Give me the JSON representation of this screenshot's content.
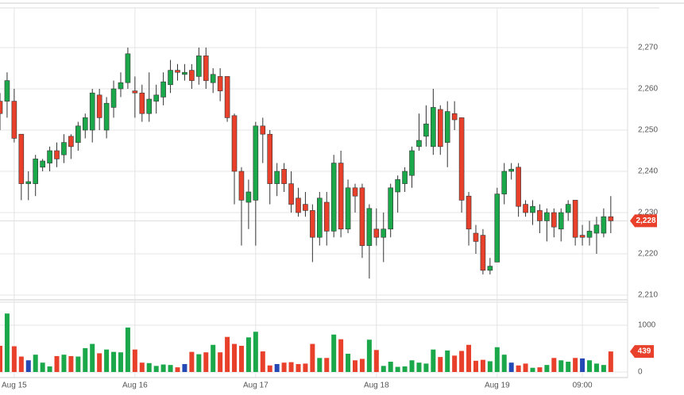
{
  "chart_data": {
    "type": "candlestick",
    "categories": [
      null,
      null,
      "Aug 15",
      null,
      null,
      null,
      null,
      null,
      null,
      null,
      null,
      null,
      null,
      null,
      null,
      null,
      null,
      null,
      null,
      "Aug 16",
      null,
      null,
      null,
      null,
      null,
      null,
      null,
      null,
      null,
      null,
      null,
      null,
      null,
      null,
      null,
      null,
      "Aug 17",
      null,
      null,
      null,
      null,
      null,
      null,
      null,
      null,
      null,
      null,
      null,
      null,
      null,
      null,
      null,
      null,
      "Aug 18",
      null,
      null,
      null,
      null,
      null,
      null,
      null,
      null,
      null,
      null,
      null,
      null,
      null,
      null,
      null,
      null,
      "Aug 19",
      null,
      null,
      null,
      null,
      null,
      null,
      null,
      null,
      null,
      null,
      null,
      "09:00",
      null,
      null,
      null,
      null
    ],
    "open": [
      2257,
      2257,
      2257,
      2249,
      2237,
      2237,
      2241,
      2242,
      2245,
      2244,
      2248.5,
      2247,
      2250,
      2250,
      2258.5,
      2250,
      2255.5,
      2260,
      2261.5,
      2259.5,
      2259,
      2254,
      2257,
      2258,
      2261,
      2264.5,
      2263.5,
      2264.5,
      2263,
      2268,
      2261.5,
      2263,
      2263,
      2253.5,
      2240,
      2232.5,
      2233,
      2251,
      2249,
      2237,
      2240.5,
      2237,
      2233.5,
      2232,
      2230.5,
      2224,
      2232.5,
      2225.5,
      2242,
      2226,
      2236,
      2236,
      2222,
      2226,
      2224,
      2226,
      2235,
      2237,
      2239,
      2246,
      2248.5,
      2246,
      2255,
      2247,
      2254,
      2253,
      2234,
      2225,
      2224.5,
      2216,
      2218,
      2234.5,
      2240,
      2241,
      2232,
      2230,
      2230.5,
      2228,
      2230,
      2226,
      2230,
      2233,
      2224.5,
      2224,
      2225,
      2225,
      2229
    ],
    "high": [
      2259,
      2264,
      2260,
      2249,
      2240,
      2244,
      2243,
      2246,
      2247,
      2249,
      2249,
      2252,
      2254,
      2260,
      2260,
      2258,
      2262,
      2264,
      2270,
      2263,
      2261,
      2264,
      2261,
      2264,
      2267,
      2266,
      2266,
      2266,
      2270,
      2270,
      2265,
      2265,
      2263,
      2254,
      2241,
      2238,
      2252,
      2253,
      2250,
      2242,
      2242,
      2240,
      2236,
      2235,
      2232,
      2235,
      2235,
      2244,
      2245,
      2238,
      2237,
      2237,
      2232,
      2231,
      2230,
      2237,
      2239,
      2241,
      2246,
      2254,
      2256,
      2260,
      2256,
      2257,
      2257,
      2253,
      2235,
      2227,
      2226,
      2219,
      2236,
      2242,
      2242,
      2242,
      2233,
      2233,
      2232,
      2231,
      2231,
      2231,
      2233,
      2233,
      2227,
      2228,
      2229,
      2231,
      2234
    ],
    "low": [
      2250,
      2253,
      2247,
      2233,
      2233,
      2234,
      2240,
      2240,
      2241,
      2242,
      2243,
      2245,
      2248,
      2247,
      2250,
      2248,
      2253,
      2258,
      2260,
      2253,
      2252,
      2252,
      2254,
      2256,
      2259,
      2262,
      2262,
      2260,
      2261,
      2260,
      2259,
      2257,
      2252,
      2232,
      2222,
      2226,
      2222,
      2242,
      2232,
      2234,
      2235,
      2230,
      2229,
      2229,
      2218,
      2222,
      2222,
      2224,
      2224,
      2225,
      2230,
      2219,
      2214,
      2222,
      2218,
      2224,
      2230,
      2235,
      2236,
      2245,
      2246,
      2244,
      2244,
      2241,
      2250,
      2230,
      2222,
      2220,
      2215,
      2215,
      2218,
      2232,
      2238,
      2229,
      2229,
      2227,
      2225,
      2223,
      2224,
      2223,
      2228,
      2222,
      2222,
      2222,
      2220,
      2224,
      2225
    ],
    "close": [
      2254,
      2262,
      2248,
      2237,
      2237.5,
      2243,
      2242.5,
      2245,
      2243,
      2247,
      2246,
      2251,
      2253,
      2259,
      2253,
      2256.5,
      2260,
      2261.5,
      2268.5,
      2259,
      2254,
      2257.5,
      2258.5,
      2261.7,
      2264.5,
      2264,
      2264,
      2262,
      2268,
      2262,
      2263.5,
      2259.5,
      2253,
      2240,
      2233,
      2235,
      2251,
      2249,
      2237,
      2240,
      2237,
      2232,
      2230,
      2230.5,
      2224,
      2233.5,
      2225.5,
      2242,
      2226,
      2236,
      2234,
      2222,
      2231,
      2224,
      2226,
      2236,
      2238,
      2240,
      2245,
      2247.5,
      2251.5,
      2255.5,
      2246,
      2254.5,
      2252.5,
      2233,
      2226,
      2223,
      2216,
      2217,
      2234.5,
      2240,
      2240.5,
      2231.5,
      2230,
      2231.5,
      2228,
      2230,
      2226.5,
      2230,
      2232,
      2224,
      2224,
      2225.5,
      2227,
      2229,
      2228
    ],
    "last_close_label": "2,228",
    "up_color": "#1aa84a",
    "down_color": "#e8402b",
    "ylim": [
      2208,
      2280
    ],
    "yticks": [
      {
        "value": 2210,
        "label": "2,210"
      },
      {
        "value": 2220,
        "label": "2,220"
      },
      {
        "value": 2230,
        "label": "2,230"
      },
      {
        "value": 2240,
        "label": "2,240"
      },
      {
        "value": 2250,
        "label": "2,250"
      },
      {
        "value": 2260,
        "label": "2,260"
      },
      {
        "value": 2270,
        "label": "2,270"
      }
    ],
    "volume": [
      560,
      1250,
      550,
      330,
      250,
      370,
      200,
      120,
      340,
      370,
      340,
      330,
      510,
      600,
      400,
      480,
      430,
      420,
      950,
      480,
      200,
      190,
      130,
      160,
      150,
      100,
      170,
      430,
      380,
      420,
      580,
      420,
      750,
      600,
      560,
      740,
      860,
      440,
      140,
      170,
      200,
      210,
      170,
      180,
      600,
      300,
      300,
      800,
      700,
      390,
      250,
      280,
      690,
      470,
      130,
      220,
      110,
      120,
      250,
      200,
      180,
      480,
      320,
      460,
      350,
      450,
      580,
      240,
      260,
      230,
      530,
      370,
      200,
      140,
      180,
      90,
      100,
      150,
      300,
      250,
      220,
      300,
      290,
      250,
      180,
      150,
      439
    ],
    "volume_colors": [
      "#e8402b",
      "#1aa84a",
      "#e8402b",
      "#e8402b",
      "#2449b5",
      "#1aa84a",
      "#1aa84a",
      "#1aa84a",
      "#e8402b",
      "#1aa84a",
      "#e8402b",
      "#1aa84a",
      "#1aa84a",
      "#1aa84a",
      "#e8402b",
      "#1aa84a",
      "#1aa84a",
      "#1aa84a",
      "#1aa84a",
      "#e8402b",
      "#e8402b",
      "#1aa84a",
      "#1aa84a",
      "#1aa84a",
      "#1aa84a",
      "#e8402b",
      "#2449b5",
      "#e8402b",
      "#1aa84a",
      "#e8402b",
      "#1aa84a",
      "#e8402b",
      "#e8402b",
      "#e8402b",
      "#e8402b",
      "#1aa84a",
      "#1aa84a",
      "#e8402b",
      "#e8402b",
      "#2449b5",
      "#e8402b",
      "#e8402b",
      "#e8402b",
      "#e8402b",
      "#e8402b",
      "#1aa84a",
      "#e8402b",
      "#1aa84a",
      "#e8402b",
      "#1aa84a",
      "#e8402b",
      "#e8402b",
      "#1aa84a",
      "#e8402b",
      "#1aa84a",
      "#1aa84a",
      "#1aa84a",
      "#1aa84a",
      "#1aa84a",
      "#1aa84a",
      "#1aa84a",
      "#1aa84a",
      "#e8402b",
      "#1aa84a",
      "#e8402b",
      "#e8402b",
      "#e8402b",
      "#e8402b",
      "#e8402b",
      "#1aa84a",
      "#1aa84a",
      "#1aa84a",
      "#2449b5",
      "#e8402b",
      "#e8402b",
      "#1aa84a",
      "#e8402b",
      "#1aa84a",
      "#e8402b",
      "#1aa84a",
      "#1aa84a",
      "#e8402b",
      "#2449b5",
      "#1aa84a",
      "#1aa84a",
      "#1aa84a",
      "#e8402b"
    ],
    "vlim": [
      0,
      1100
    ],
    "vticks": [
      0,
      1000
    ],
    "grid": true
  }
}
